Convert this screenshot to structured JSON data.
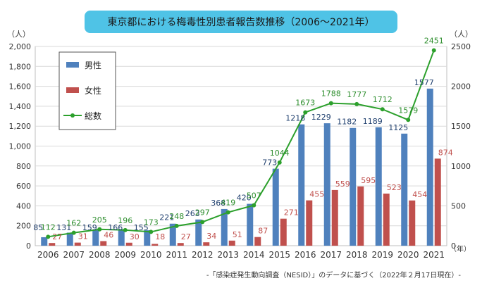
{
  "chart_data": {
    "type": "bar+line",
    "title": "東京都における梅毒性別患者報告数推移（2006〜2021年）",
    "y_left_label": "（人）",
    "y_right_label": "（人）",
    "x_unit_label": "（年）",
    "source_note": "-「感染症発生動向調査（NESID）」のデータに基づく（2022年２月17日現在）-",
    "ylim_left": [
      0,
      2000
    ],
    "yticks_left": [
      0,
      200,
      400,
      600,
      800,
      1000,
      1200,
      1400,
      1600,
      1800,
      2000
    ],
    "ytick_labels_left": [
      "0",
      "200",
      "400",
      "600",
      "800",
      "1,000",
      "1,200",
      "1,400",
      "1,600",
      "1,800",
      "2,000"
    ],
    "ylim_right": [
      0,
      2500
    ],
    "yticks_right": [
      0,
      500,
      1000,
      1500,
      2000,
      2500
    ],
    "categories": [
      "2006",
      "2007",
      "2008",
      "2009",
      "2010",
      "2011",
      "2012",
      "2013",
      "2014",
      "2015",
      "2016",
      "2017",
      "2018",
      "2019",
      "2020",
      "2021"
    ],
    "series": [
      {
        "name": "男性",
        "type": "bar",
        "axis": "left",
        "color": "#4f81bd",
        "values": [
          85,
          131,
          159,
          166,
          155,
          221,
          263,
          368,
          420,
          773,
          1218,
          1229,
          1182,
          1189,
          1125,
          1577
        ]
      },
      {
        "name": "女性",
        "type": "bar",
        "axis": "left",
        "color": "#c0504d",
        "values": [
          27,
          31,
          46,
          30,
          18,
          27,
          34,
          51,
          87,
          271,
          455,
          559,
          595,
          523,
          454,
          874
        ]
      },
      {
        "name": "総数",
        "type": "line",
        "axis": "right",
        "color": "#2ca02c",
        "values": [
          112,
          162,
          205,
          196,
          173,
          248,
          297,
          419,
          507,
          1044,
          1673,
          1788,
          1777,
          1712,
          1579,
          2451
        ]
      }
    ],
    "grid": true,
    "legend_position": "top-left"
  }
}
